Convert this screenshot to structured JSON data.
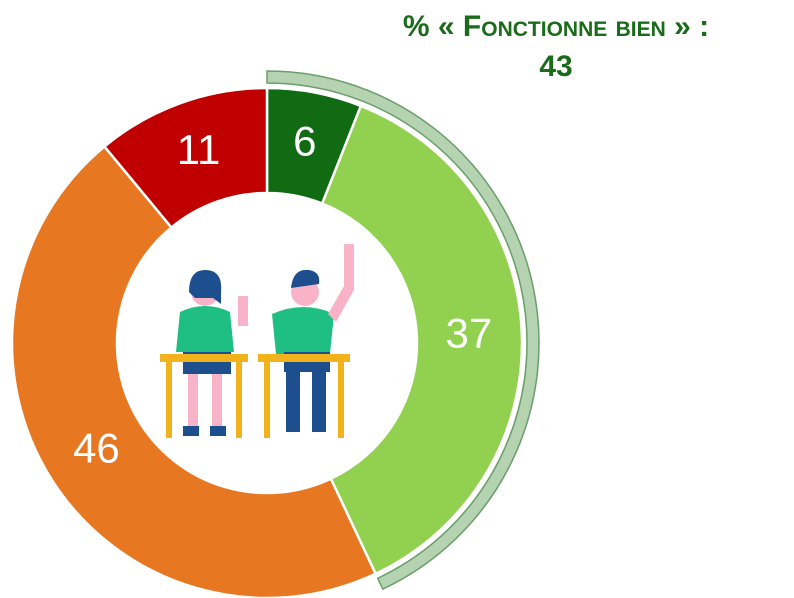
{
  "chart_data": {
    "type": "donut",
    "annotation": {
      "text": "% « Fonctionne bien » :",
      "value": 43
    },
    "values": [
      6,
      37,
      46,
      11
    ],
    "colors": [
      "#116b12",
      "#92d050",
      "#e87722",
      "#c00000"
    ],
    "highlight_color": "#b5d3b0"
  }
}
